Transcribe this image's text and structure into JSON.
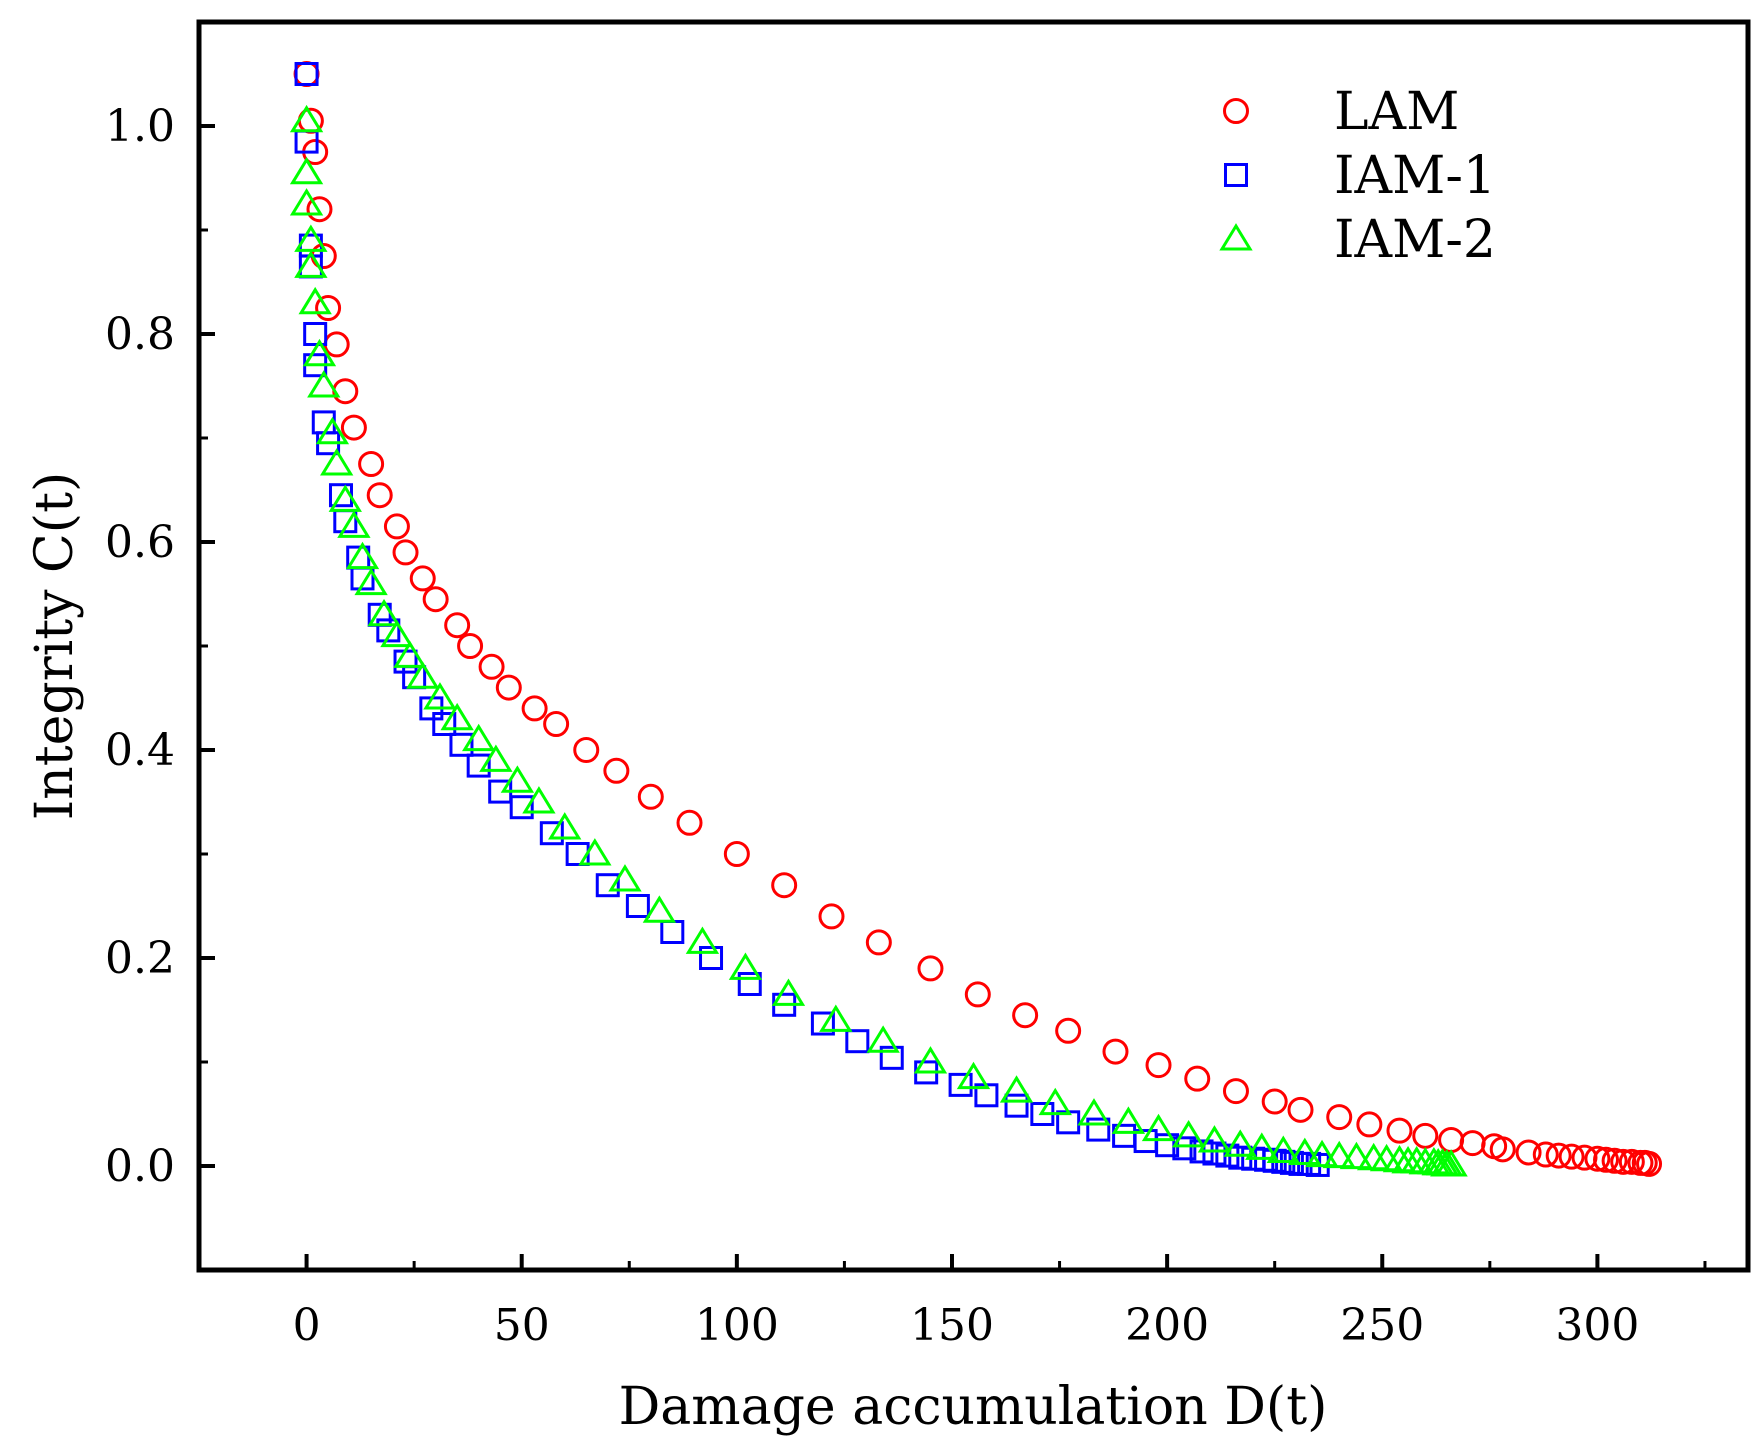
{
  "chart_data": {
    "type": "scatter",
    "title": "",
    "xlabel": "Damage accumulation D(t)",
    "ylabel": "Integrity C(t)",
    "xlim": [
      -25,
      335
    ],
    "ylim": [
      -0.1,
      1.1
    ],
    "x_ticks": [
      "0",
      "50",
      "100",
      "150",
      "200",
      "250",
      "300"
    ],
    "x_tick_values": [
      0,
      50,
      100,
      150,
      200,
      250,
      300
    ],
    "y_ticks": [
      "0.0",
      "0.2",
      "0.4",
      "0.6",
      "0.8",
      "1.0"
    ],
    "y_tick_values": [
      0.0,
      0.2,
      0.4,
      0.6,
      0.8,
      1.0
    ],
    "grid": false,
    "legend_position": "top-right",
    "series": [
      {
        "name": "LAM",
        "marker": "circle",
        "color": "#ff0000",
        "x": [
          0,
          1,
          2,
          3,
          4,
          5,
          7,
          9,
          11,
          15,
          17,
          21,
          23,
          27,
          30,
          35,
          38,
          43,
          47,
          53,
          58,
          65,
          72,
          80,
          89,
          100,
          111,
          122,
          133,
          145,
          156,
          167,
          177,
          188,
          198,
          207,
          216,
          225,
          231,
          240,
          247,
          254,
          260,
          266,
          271,
          276,
          278,
          284,
          288,
          291,
          294,
          297,
          300,
          302,
          304,
          306,
          308,
          310,
          311,
          312
        ],
        "y": [
          1.05,
          1.005,
          0.975,
          0.92,
          0.875,
          0.825,
          0.79,
          0.745,
          0.71,
          0.675,
          0.645,
          0.615,
          0.59,
          0.565,
          0.545,
          0.52,
          0.5,
          0.48,
          0.46,
          0.44,
          0.425,
          0.4,
          0.38,
          0.355,
          0.33,
          0.3,
          0.27,
          0.24,
          0.215,
          0.19,
          0.165,
          0.145,
          0.13,
          0.11,
          0.097,
          0.084,
          0.072,
          0.062,
          0.054,
          0.047,
          0.04,
          0.034,
          0.029,
          0.025,
          0.022,
          0.019,
          0.016,
          0.013,
          0.011,
          0.01,
          0.009,
          0.008,
          0.007,
          0.006,
          0.005,
          0.004,
          0.004,
          0.003,
          0.003,
          0.002
        ]
      },
      {
        "name": "IAM-1",
        "marker": "square",
        "color": "#0000ff",
        "x": [
          0,
          0,
          1,
          1,
          2,
          2,
          4,
          5,
          8,
          9,
          12,
          13,
          17,
          19,
          23,
          25,
          29,
          32,
          36,
          40,
          45,
          50,
          57,
          63,
          70,
          77,
          85,
          94,
          103,
          111,
          120,
          128,
          136,
          144,
          152,
          158,
          165,
          171,
          177,
          184,
          190,
          195,
          200,
          204,
          208,
          211,
          214,
          217,
          220,
          223,
          225,
          227,
          229,
          231,
          233,
          235
        ],
        "y": [
          1.05,
          0.985,
          0.885,
          0.865,
          0.8,
          0.77,
          0.715,
          0.695,
          0.645,
          0.62,
          0.585,
          0.565,
          0.53,
          0.515,
          0.485,
          0.47,
          0.44,
          0.425,
          0.405,
          0.385,
          0.36,
          0.345,
          0.32,
          0.3,
          0.27,
          0.25,
          0.225,
          0.2,
          0.175,
          0.155,
          0.137,
          0.12,
          0.104,
          0.09,
          0.078,
          0.068,
          0.058,
          0.05,
          0.042,
          0.035,
          0.029,
          0.024,
          0.02,
          0.017,
          0.014,
          0.012,
          0.01,
          0.008,
          0.007,
          0.006,
          0.005,
          0.004,
          0.003,
          0.002,
          0.002,
          0.001
        ]
      },
      {
        "name": "IAM-2",
        "marker": "triangle",
        "color": "#00ff00",
        "x": [
          0,
          0,
          0,
          1,
          1,
          2,
          3,
          4,
          6,
          7,
          9,
          11,
          13,
          15,
          18,
          21,
          24,
          27,
          31,
          35,
          40,
          44,
          49,
          54,
          60,
          67,
          74,
          82,
          92,
          102,
          112,
          123,
          134,
          145,
          155,
          165,
          174,
          183,
          191,
          198,
          205,
          211,
          217,
          222,
          227,
          232,
          236,
          240,
          244,
          248,
          251,
          254,
          256,
          258,
          260,
          262,
          263,
          264,
          265,
          266
        ],
        "y": [
          1.005,
          0.955,
          0.925,
          0.89,
          0.865,
          0.83,
          0.78,
          0.75,
          0.705,
          0.675,
          0.64,
          0.615,
          0.585,
          0.56,
          0.53,
          0.51,
          0.49,
          0.47,
          0.45,
          0.43,
          0.41,
          0.39,
          0.37,
          0.35,
          0.325,
          0.3,
          0.275,
          0.245,
          0.215,
          0.19,
          0.165,
          0.14,
          0.12,
          0.1,
          0.085,
          0.072,
          0.06,
          0.05,
          0.042,
          0.035,
          0.029,
          0.024,
          0.02,
          0.017,
          0.014,
          0.012,
          0.01,
          0.009,
          0.008,
          0.007,
          0.006,
          0.005,
          0.004,
          0.004,
          0.003,
          0.003,
          0.002,
          0.002,
          0.001,
          0.001
        ]
      }
    ]
  }
}
